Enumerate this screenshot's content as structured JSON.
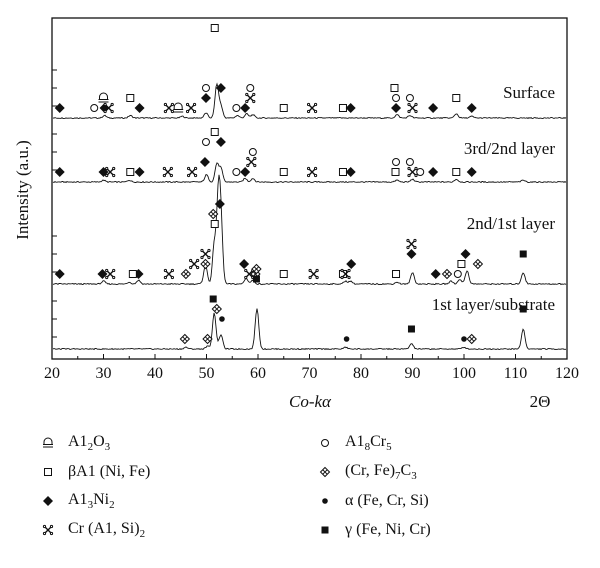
{
  "chart_data": {
    "type": "line",
    "xlabel": "Co-kα",
    "xlabel_right": "2Θ",
    "ylabel": "Intensity (a.u.)",
    "xlim": [
      20,
      120
    ],
    "x_ticks": [
      20,
      30,
      40,
      50,
      60,
      70,
      80,
      90,
      100,
      110,
      120
    ],
    "series": [
      {
        "name": "Surface",
        "peaks": [
          [
            30.2,
            3
          ],
          [
            35.2,
            3
          ],
          [
            45.3,
            2
          ],
          [
            49.9,
            6
          ],
          [
            52.0,
            40
          ],
          [
            52.8,
            14
          ],
          [
            56.0,
            3
          ],
          [
            57.8,
            5
          ],
          [
            59.0,
            4
          ],
          [
            87.0,
            4
          ],
          [
            89.5,
            3
          ],
          [
            98.5,
            5
          ],
          [
            101.5,
            2
          ]
        ],
        "markers": [
          {
            "x": 21.5,
            "marker": "diamond",
            "tier": 0
          },
          {
            "x": 28.2,
            "marker": "circle",
            "tier": 0
          },
          {
            "x": 30.0,
            "marker": "arch",
            "tier": 1
          },
          {
            "x": 30.2,
            "marker": "diamond",
            "tier": 0
          },
          {
            "x": 31.0,
            "marker": "cross",
            "tier": 0
          },
          {
            "x": 35.2,
            "marker": "square",
            "tier": 1
          },
          {
            "x": 37.0,
            "marker": "diamond",
            "tier": 0
          },
          {
            "x": 42.7,
            "marker": "cross",
            "tier": 0
          },
          {
            "x": 44.5,
            "marker": "arch",
            "tier": 0
          },
          {
            "x": 47.0,
            "marker": "cross",
            "tier": 0
          },
          {
            "x": 49.9,
            "marker": "circle",
            "tier": 2
          },
          {
            "x": 49.9,
            "marker": "diamond",
            "tier": 1
          },
          {
            "x": 51.6,
            "marker": "square",
            "tier": 8
          },
          {
            "x": 52.8,
            "marker": "diamond",
            "tier": 2
          },
          {
            "x": 55.8,
            "marker": "circle",
            "tier": 0
          },
          {
            "x": 57.5,
            "marker": "diamond",
            "tier": 0
          },
          {
            "x": 58.5,
            "marker": "circle",
            "tier": 2
          },
          {
            "x": 58.5,
            "marker": "cross",
            "tier": 1
          },
          {
            "x": 65.0,
            "marker": "square",
            "tier": 0
          },
          {
            "x": 70.5,
            "marker": "cross",
            "tier": 0
          },
          {
            "x": 76.5,
            "marker": "square",
            "tier": 0
          },
          {
            "x": 78.0,
            "marker": "diamond",
            "tier": 0
          },
          {
            "x": 86.5,
            "marker": "square",
            "tier": 2
          },
          {
            "x": 86.8,
            "marker": "circle",
            "tier": 1
          },
          {
            "x": 86.8,
            "marker": "diamond",
            "tier": 0
          },
          {
            "x": 89.5,
            "marker": "circle",
            "tier": 1
          },
          {
            "x": 90.0,
            "marker": "cross",
            "tier": 0
          },
          {
            "x": 94.0,
            "marker": "diamond",
            "tier": 0
          },
          {
            "x": 98.5,
            "marker": "square",
            "tier": 1
          },
          {
            "x": 101.5,
            "marker": "diamond",
            "tier": 0
          }
        ]
      },
      {
        "name": "3rd/2nd layer",
        "peaks": [
          [
            30.0,
            2
          ],
          [
            35.0,
            2
          ],
          [
            50.0,
            8
          ],
          [
            52.0,
            20
          ],
          [
            52.8,
            15
          ],
          [
            57.5,
            4
          ],
          [
            59.0,
            4
          ],
          [
            87.0,
            2
          ],
          [
            90.0,
            3
          ],
          [
            98.5,
            3
          ],
          [
            111.5,
            2
          ]
        ],
        "markers": [
          {
            "x": 21.5,
            "marker": "diamond",
            "tier": 0
          },
          {
            "x": 30.0,
            "marker": "diamond",
            "tier": 0
          },
          {
            "x": 31.3,
            "marker": "cross",
            "tier": 0
          },
          {
            "x": 35.2,
            "marker": "square",
            "tier": 0
          },
          {
            "x": 37.0,
            "marker": "diamond",
            "tier": 0
          },
          {
            "x": 42.5,
            "marker": "cross",
            "tier": 0
          },
          {
            "x": 47.2,
            "marker": "cross",
            "tier": 0
          },
          {
            "x": 49.7,
            "marker": "diamond",
            "tier": 1
          },
          {
            "x": 49.9,
            "marker": "circle",
            "tier": 3
          },
          {
            "x": 51.6,
            "marker": "square",
            "tier": 4
          },
          {
            "x": 52.8,
            "marker": "diamond",
            "tier": 3
          },
          {
            "x": 55.8,
            "marker": "circle",
            "tier": 0
          },
          {
            "x": 57.5,
            "marker": "diamond",
            "tier": 0
          },
          {
            "x": 59.0,
            "marker": "circle",
            "tier": 2
          },
          {
            "x": 58.7,
            "marker": "cross",
            "tier": 1
          },
          {
            "x": 65.0,
            "marker": "square",
            "tier": 0
          },
          {
            "x": 70.5,
            "marker": "cross",
            "tier": 0
          },
          {
            "x": 76.5,
            "marker": "square",
            "tier": 0
          },
          {
            "x": 78.0,
            "marker": "diamond",
            "tier": 0
          },
          {
            "x": 86.7,
            "marker": "square",
            "tier": 0
          },
          {
            "x": 86.8,
            "marker": "circle",
            "tier": 1
          },
          {
            "x": 89.5,
            "marker": "circle",
            "tier": 1
          },
          {
            "x": 90.0,
            "marker": "cross",
            "tier": 0
          },
          {
            "x": 91.5,
            "marker": "circle",
            "tier": 0
          },
          {
            "x": 94.0,
            "marker": "diamond",
            "tier": 0
          },
          {
            "x": 98.5,
            "marker": "square",
            "tier": 0
          },
          {
            "x": 101.5,
            "marker": "diamond",
            "tier": 0
          }
        ]
      },
      {
        "name": "2nd/1st layer",
        "peaks": [
          [
            30.0,
            3
          ],
          [
            35.0,
            2
          ],
          [
            36.8,
            4
          ],
          [
            49.8,
            20
          ],
          [
            51.5,
            40
          ],
          [
            52.3,
            85
          ],
          [
            52.8,
            60
          ],
          [
            57.7,
            6
          ],
          [
            59.0,
            4
          ],
          [
            77.0,
            3
          ],
          [
            78.0,
            3
          ],
          [
            87.0,
            2
          ],
          [
            90.0,
            12
          ],
          [
            97.5,
            3
          ],
          [
            99.2,
            5
          ],
          [
            100.6,
            14
          ],
          [
            111.5,
            12
          ]
        ],
        "markers": [
          {
            "x": 21.5,
            "marker": "diamond",
            "tier": 0
          },
          {
            "x": 29.8,
            "marker": "diamond",
            "tier": 0
          },
          {
            "x": 31.3,
            "marker": "cross",
            "tier": 0
          },
          {
            "x": 36.8,
            "marker": "diamond",
            "tier": 0
          },
          {
            "x": 35.7,
            "marker": "square",
            "tier": 0
          },
          {
            "x": 42.7,
            "marker": "cross",
            "tier": 0
          },
          {
            "x": 46.0,
            "marker": "carbide",
            "tier": 0
          },
          {
            "x": 47.6,
            "marker": "cross",
            "tier": 1
          },
          {
            "x": 49.8,
            "marker": "cross",
            "tier": 2
          },
          {
            "x": 49.8,
            "marker": "carbide",
            "tier": 1
          },
          {
            "x": 51.3,
            "marker": "carbide",
            "tier": 6
          },
          {
            "x": 51.6,
            "marker": "square",
            "tier": 5
          },
          {
            "x": 52.6,
            "marker": "diamond",
            "tier": 7
          },
          {
            "x": 57.3,
            "marker": "diamond",
            "tier": 1
          },
          {
            "x": 58.3,
            "marker": "cross",
            "tier": 0
          },
          {
            "x": 59.5,
            "marker": "carbide",
            "tier": 0
          },
          {
            "x": 65.0,
            "marker": "square",
            "tier": 0
          },
          {
            "x": 70.8,
            "marker": "cross",
            "tier": 0
          },
          {
            "x": 76.5,
            "marker": "square",
            "tier": 0
          },
          {
            "x": 77.0,
            "marker": "cross",
            "tier": 0
          },
          {
            "x": 78.1,
            "marker": "diamond",
            "tier": 1
          },
          {
            "x": 86.8,
            "marker": "square",
            "tier": 0
          },
          {
            "x": 89.8,
            "marker": "diamond",
            "tier": 2
          },
          {
            "x": 89.8,
            "marker": "cross",
            "tier": 3
          },
          {
            "x": 94.5,
            "marker": "diamond",
            "tier": 0
          },
          {
            "x": 96.7,
            "marker": "carbide",
            "tier": 0
          },
          {
            "x": 98.8,
            "marker": "circle",
            "tier": 0
          },
          {
            "x": 100.3,
            "marker": "diamond",
            "tier": 2
          },
          {
            "x": 99.5,
            "marker": "square",
            "tier": 1
          },
          {
            "x": 102.7,
            "marker": "carbide",
            "tier": 1
          },
          {
            "x": 111.5,
            "marker": "filled-square",
            "tier": 2
          }
        ]
      },
      {
        "name": "1st layer/substrate",
        "peaks": [
          [
            46.0,
            2
          ],
          [
            50.2,
            3
          ],
          [
            51.5,
            40
          ],
          [
            52.8,
            16
          ],
          [
            59.8,
            45
          ],
          [
            77.0,
            2
          ],
          [
            89.8,
            6
          ],
          [
            100.0,
            2
          ],
          [
            111.5,
            22
          ]
        ],
        "markers": [
          {
            "x": 45.8,
            "marker": "carbide",
            "tier": 0
          },
          {
            "x": 50.2,
            "marker": "carbide",
            "tier": 0
          },
          {
            "x": 51.3,
            "marker": "filled-square",
            "tier": 4
          },
          {
            "x": 52.0,
            "marker": "carbide",
            "tier": 3
          },
          {
            "x": 53.0,
            "marker": "dot",
            "tier": 2
          },
          {
            "x": 59.7,
            "marker": "filled-square",
            "tier": 6
          },
          {
            "x": 59.7,
            "marker": "carbide",
            "tier": 7
          },
          {
            "x": 77.2,
            "marker": "dot",
            "tier": 0
          },
          {
            "x": 89.8,
            "marker": "filled-square",
            "tier": 1
          },
          {
            "x": 100.0,
            "marker": "dot",
            "tier": 0
          },
          {
            "x": 101.5,
            "marker": "carbide",
            "tier": 0
          },
          {
            "x": 111.5,
            "marker": "filled-square",
            "tier": 3
          }
        ]
      }
    ],
    "legend": [
      {
        "marker": "arch",
        "text": "A1",
        "sub": "2",
        "text2": "O",
        "sub2": "3",
        "text3": ""
      },
      {
        "marker": "circle",
        "text": "A1",
        "sub": "8",
        "text2": "Cr",
        "sub2": "5",
        "text3": ""
      },
      {
        "marker": "square",
        "text": "βA1 (Ni, Fe)",
        "sub": "",
        "text2": "",
        "sub2": "",
        "text3": ""
      },
      {
        "marker": "carbide",
        "text": "(Cr, Fe)",
        "sub": "7",
        "text2": "C",
        "sub2": "3",
        "text3": ""
      },
      {
        "marker": "diamond",
        "text": "A1",
        "sub": "3",
        "text2": "Ni",
        "sub2": "2",
        "text3": ""
      },
      {
        "marker": "dot",
        "text": "α (Fe, Cr, Si)",
        "sub": "",
        "text2": "",
        "sub2": "",
        "text3": ""
      },
      {
        "marker": "cross",
        "text": "Cr (A1, Si)",
        "sub": "2",
        "text2": "",
        "sub2": "",
        "text3": ""
      },
      {
        "marker": "filled-square",
        "text": "γ (Fe, Ni, Cr)",
        "sub": "",
        "text2": "",
        "sub2": "",
        "text3": ""
      }
    ]
  }
}
